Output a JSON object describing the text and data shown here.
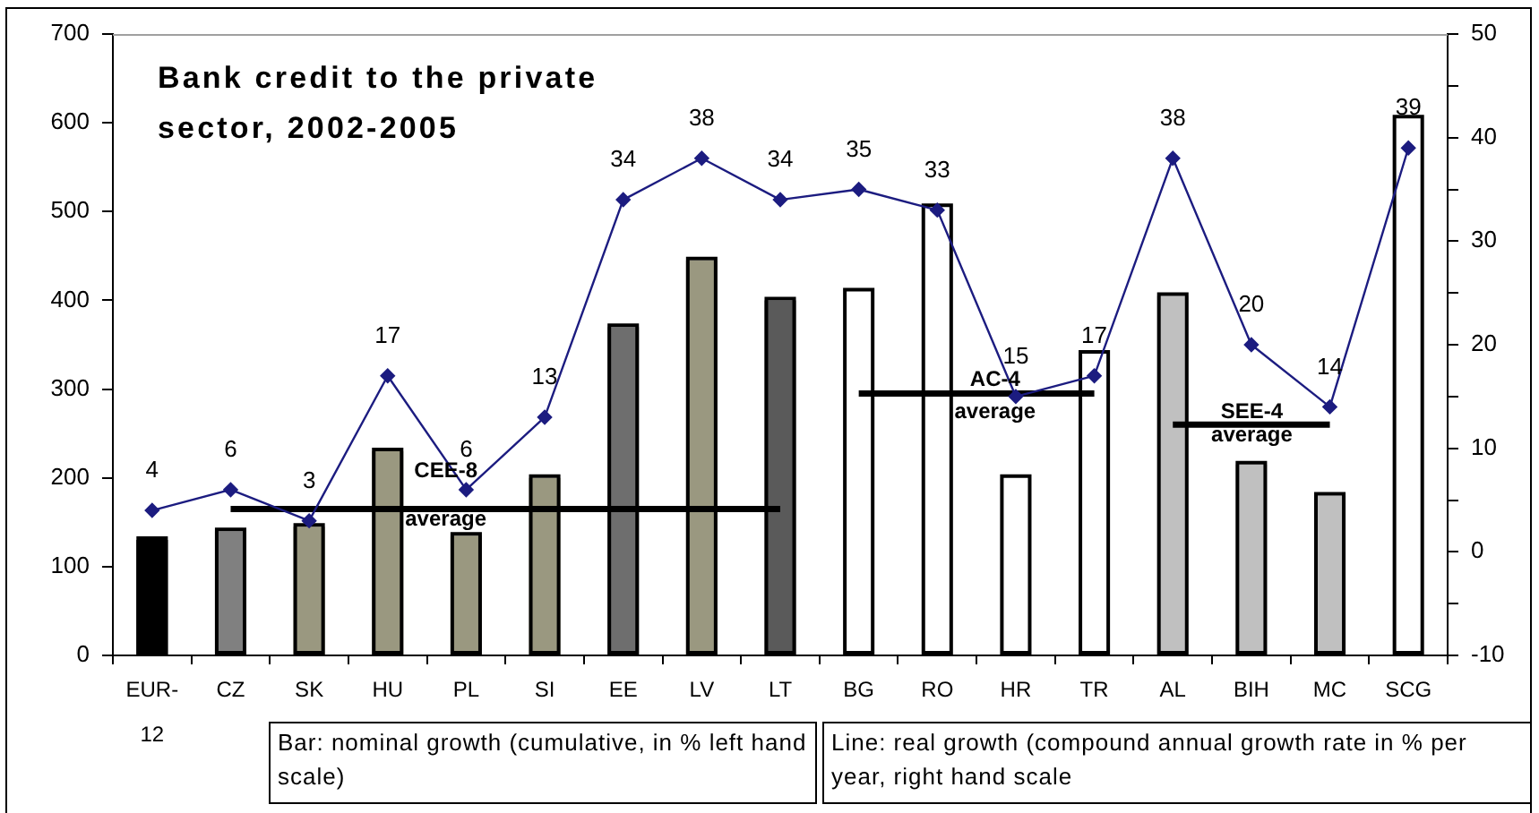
{
  "chart_data": {
    "type": "bar",
    "title": "Bank credit to the private sector, 2002-2005",
    "categories": [
      "EUR-12",
      "CZ",
      "SK",
      "HU",
      "PL",
      "SI",
      "EE",
      "LV",
      "LT",
      "BG",
      "RO",
      "HR",
      "TR",
      "AL",
      "BIH",
      "MC",
      "SCG"
    ],
    "series": [
      {
        "colors": [
          "#000000",
          "#808080",
          "#9a9880",
          "#9a9880",
          "#9a9880",
          "#9a9880",
          "#6e6e6e",
          "#9a9880",
          "#5a5a5a",
          "#ffffff",
          "#ffffff",
          "#ffffff",
          "#ffffff",
          "#c0c0c0",
          "#c0c0c0",
          "#c0c0c0",
          "#ffffff"
        ],
        "values": [
          130,
          140,
          145,
          230,
          135,
          200,
          370,
          445,
          400,
          410,
          505,
          200,
          340,
          405,
          215,
          180,
          605
        ]
      },
      {
        "type": "line",
        "name": "CEE-8 average",
        "color": "#000000",
        "marker": "none",
        "values": [
          null,
          165,
          165,
          165,
          165,
          165,
          165,
          165,
          165,
          null,
          null,
          null,
          null,
          null,
          null,
          null,
          null
        ]
      },
      {
        "type": "line",
        "name": "AC-4 average",
        "color": "#000000",
        "marker": "none",
        "values": [
          null,
          null,
          null,
          null,
          null,
          null,
          null,
          null,
          null,
          295,
          295,
          295,
          295,
          null,
          null,
          null,
          null
        ]
      },
      {
        "type": "line",
        "name": "SEE-4 average",
        "color": "#000000",
        "marker": "none",
        "values": [
          null,
          null,
          null,
          null,
          null,
          null,
          null,
          null,
          null,
          null,
          null,
          null,
          null,
          260,
          260,
          260,
          null
        ]
      },
      {
        "type": "line",
        "axis": "y2",
        "color": "#1c1c80",
        "marker": "diamond",
        "values": [
          4,
          6,
          3,
          17,
          6,
          13,
          34,
          38,
          34,
          35,
          33,
          15,
          17,
          38,
          20,
          14,
          39
        ],
        "value_labels": [
          "4",
          "6",
          "3",
          "17",
          "6",
          "13",
          "34",
          "38",
          "34",
          "35",
          "33",
          "15",
          "17",
          "38",
          "20",
          "14",
          "39"
        ]
      }
    ],
    "ylim": [
      0,
      700
    ],
    "yticks": [
      0,
      100,
      200,
      300,
      400,
      500,
      600,
      700
    ],
    "y2lim": [
      -10,
      50
    ],
    "y2ticks": [
      -10,
      {
        "value": -5,
        "label": null
      },
      0,
      {
        "value": 5,
        "label": null
      },
      10,
      {
        "value": 15,
        "label": null
      },
      20,
      {
        "value": 25,
        "label": null
      },
      30,
      {
        "value": 35,
        "label": null
      },
      40,
      {
        "value": 45,
        "label": null
      },
      50
    ],
    "grid": false,
    "annotations": [
      "Bar: nominal growth (cumulative, in % left hand scale)",
      "Line: real growth (compound annual growth rate in % per year, right hand scale"
    ]
  }
}
